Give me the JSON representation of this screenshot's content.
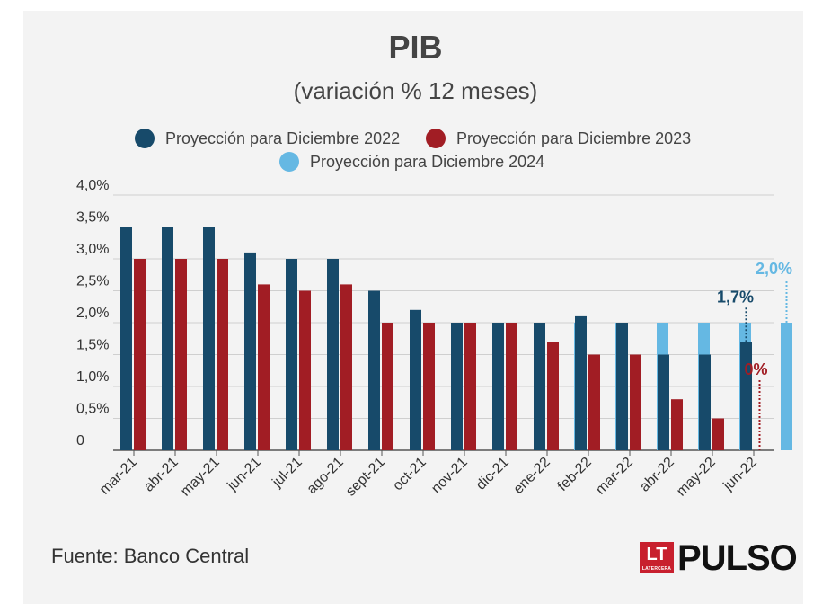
{
  "chart_data": {
    "type": "bar",
    "title": "PIB",
    "subtitle": "(variación % 12 meses)",
    "categories": [
      "mar-21",
      "abr-21",
      "may-21",
      "jun-21",
      "jul-21",
      "ago-21",
      "sept-21",
      "oct-21",
      "nov-21",
      "dic-21",
      "ene-22",
      "feb-22",
      "mar-22",
      "abr-22",
      "may-22",
      "jun-22"
    ],
    "series": [
      {
        "name": "Proyección para Diciembre 2022",
        "color": "#174a6a",
        "values": [
          3.5,
          3.5,
          3.5,
          3.1,
          3.0,
          3.0,
          2.5,
          2.2,
          2.0,
          2.0,
          2.0,
          2.1,
          2.0,
          1.5,
          1.5,
          1.7
        ]
      },
      {
        "name": "Proyección para Diciembre 2023",
        "color": "#a11d24",
        "values": [
          3.0,
          3.0,
          3.0,
          2.6,
          2.5,
          2.6,
          2.0,
          2.0,
          2.0,
          2.0,
          1.7,
          1.5,
          1.5,
          0.8,
          0.5,
          0.0
        ]
      },
      {
        "name": "Proyección para Diciembre 2024",
        "color": "#65b8e3",
        "values": [
          null,
          null,
          null,
          null,
          null,
          null,
          null,
          null,
          null,
          null,
          2.0,
          2.0,
          2.0,
          2.0,
          2.0,
          2.0
        ]
      }
    ],
    "yticks": [
      "0",
      "0,5%",
      "1,0%",
      "1,5%",
      "2,0%",
      "2,5%",
      "3,0%",
      "3,5%",
      "4,0%"
    ],
    "ylim": [
      0,
      4.0
    ],
    "grid": true,
    "legend_position": "top",
    "annotations": [
      {
        "text": "1,7%",
        "series": 0,
        "category": "jun-22",
        "value": 1.7
      },
      {
        "text": "0%",
        "series": 1,
        "category": "jun-22",
        "value": 0.0
      },
      {
        "text": "2,0%",
        "series": 2,
        "category": "jun-22",
        "value": 2.0
      }
    ]
  },
  "footer": {
    "source": "Fuente: Banco Central",
    "logo_lt": "LT",
    "logo_lt_small": "LATERCERA",
    "logo_pulso": "PULSO"
  }
}
